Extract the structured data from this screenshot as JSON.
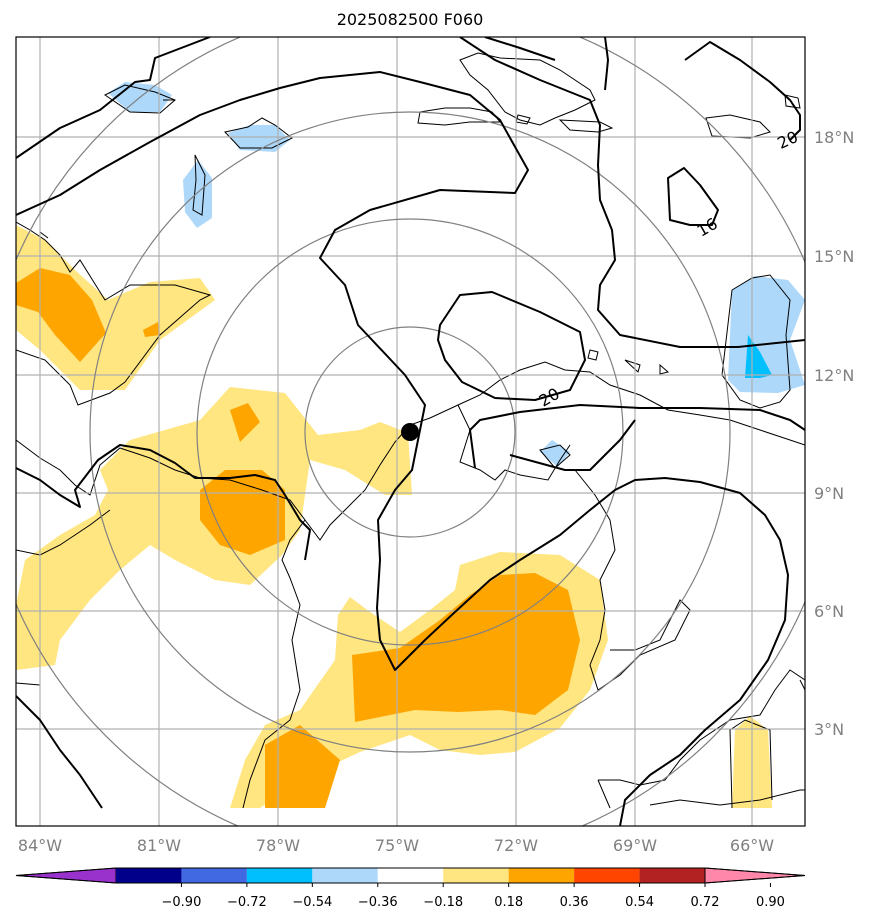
{
  "title": "2025082500 F060",
  "map": {
    "lon_labels": [
      "84°W",
      "81°W",
      "78°W",
      "75°W",
      "72°W",
      "69°W",
      "66°W"
    ],
    "lat_labels": [
      "18°N",
      "15°N",
      "12°N",
      "9°N",
      "6°N",
      "3°N"
    ],
    "contour_labels": [
      "20",
      "16",
      "20"
    ],
    "center_marker": "black-dot"
  },
  "colorbar": {
    "ticks": [
      "−0.90",
      "−0.72",
      "−0.54",
      "−0.36",
      "−0.18",
      "0.18",
      "0.36",
      "0.54",
      "0.72",
      "0.90"
    ],
    "colors": [
      "#9932cc",
      "#00008b",
      "#4169e1",
      "#00bfff",
      "#add8fa",
      "#ffffff",
      "#ffe680",
      "#ffa500",
      "#ff4500",
      "#b22222",
      "#ff88aa"
    ]
  }
}
